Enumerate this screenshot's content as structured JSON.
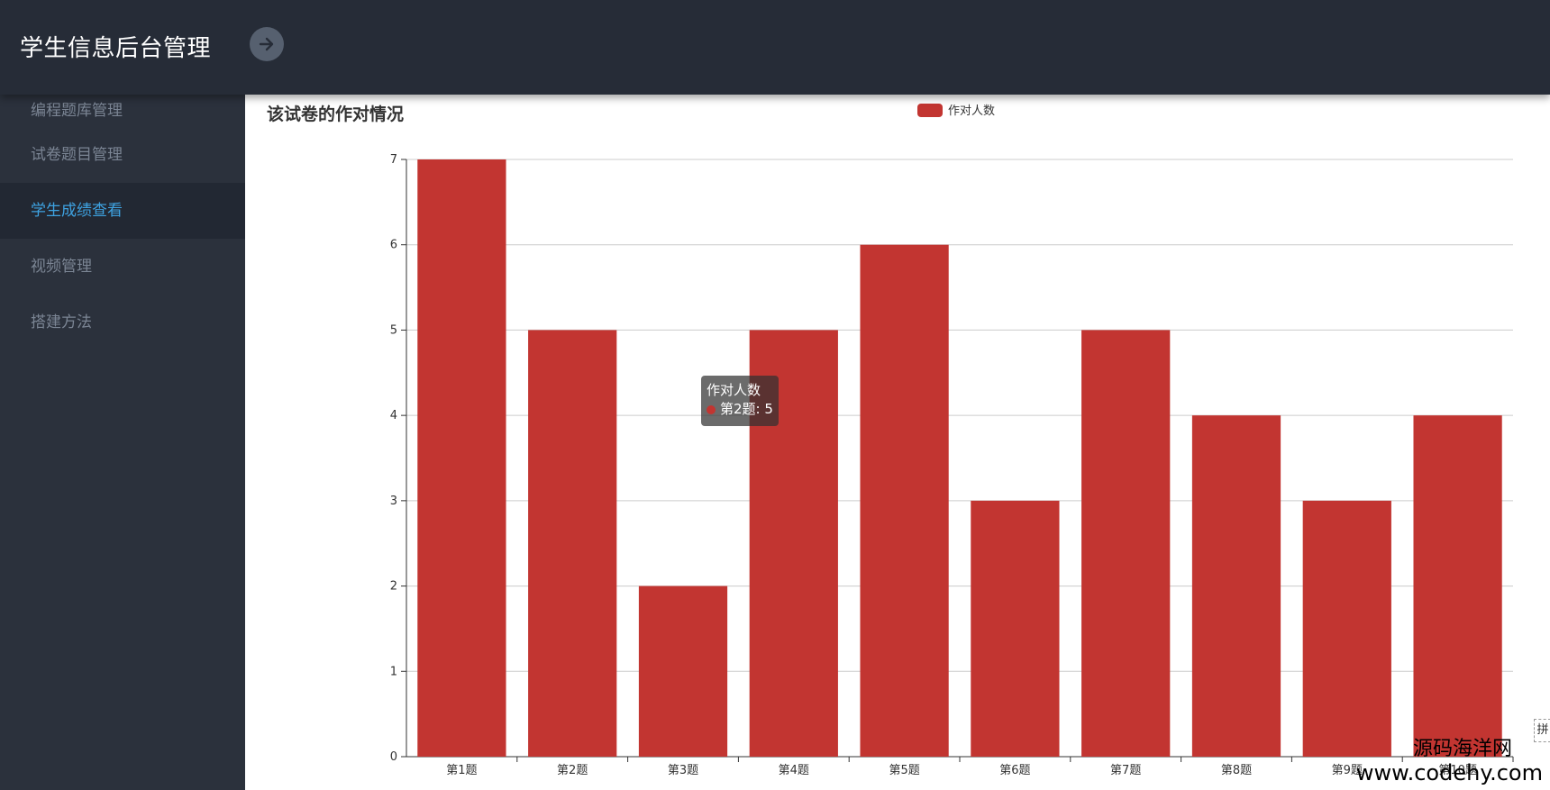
{
  "app": {
    "title": "学生信息后台管理"
  },
  "sidebar": {
    "items": [
      {
        "label": "编程题库管理"
      },
      {
        "label": "试卷题目管理"
      },
      {
        "label": "学生成绩查看"
      },
      {
        "label": "视频管理"
      },
      {
        "label": "搭建方法"
      }
    ]
  },
  "tooltip": {
    "series": "作对人数",
    "value_line": "第2题: 5"
  },
  "watermark": {
    "line1": "源码海洋网",
    "line2": "www.codehy.com"
  },
  "edge_tab": "拼",
  "colors": {
    "bar": "#c23531",
    "topbar": "#262c37",
    "sidebar": "#2b313c",
    "active_text": "#3ea2e1"
  },
  "chart_data": {
    "type": "bar",
    "title": "该试卷的作对情况",
    "categories": [
      "第1题",
      "第2题",
      "第3题",
      "第4题",
      "第5题",
      "第6题",
      "第7题",
      "第8题",
      "第9题",
      "第10题"
    ],
    "series": [
      {
        "name": "作对人数",
        "values": [
          7,
          5,
          2,
          5,
          6,
          3,
          5,
          4,
          3,
          4
        ]
      }
    ],
    "ylim": [
      0,
      7
    ],
    "yticks": [
      0,
      1,
      2,
      3,
      4,
      5,
      6,
      7
    ],
    "grid": true,
    "legend": "top-center"
  }
}
